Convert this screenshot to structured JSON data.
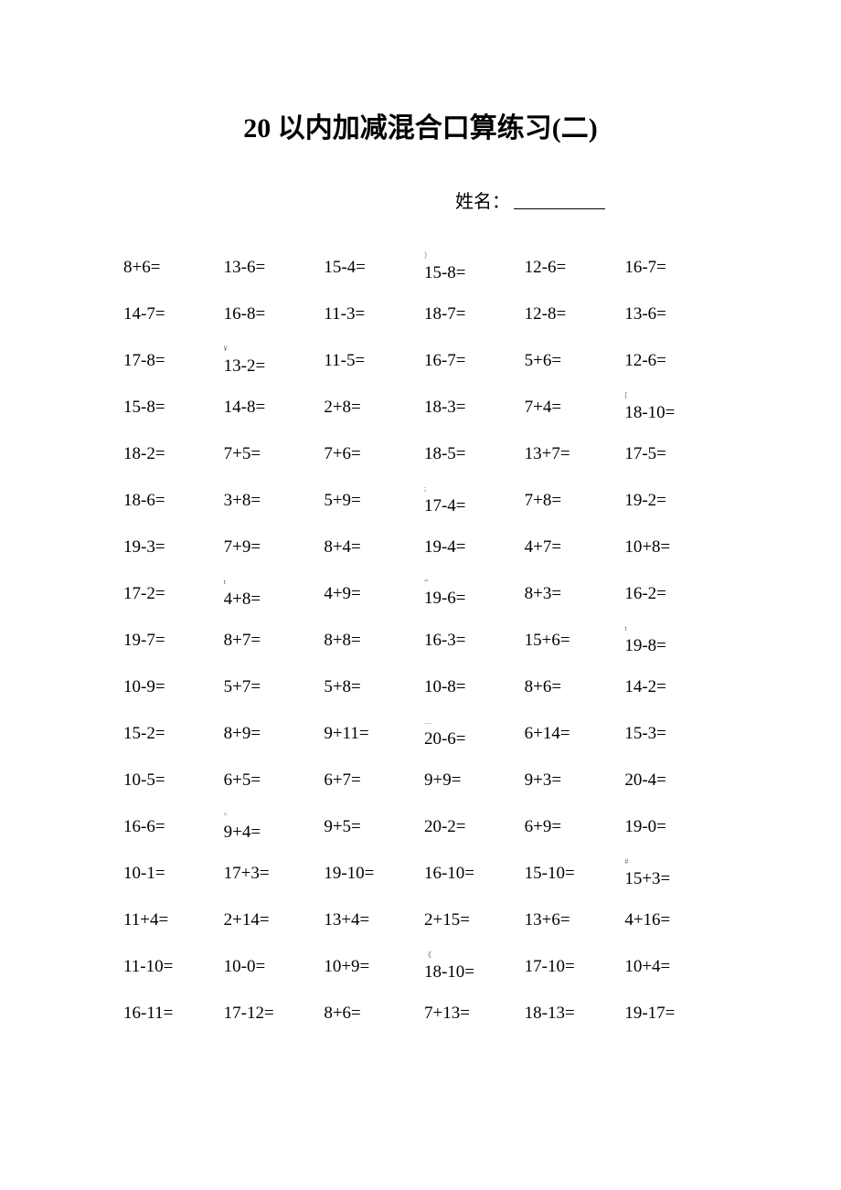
{
  "title": "20 以内加减混合口算练习(二)",
  "name_label": "姓名：",
  "columns": 6,
  "text_color": "#000000",
  "background_color": "#ffffff",
  "title_fontsize": 30,
  "body_fontsize": 19,
  "rows": [
    [
      {
        "text": "8+6="
      },
      {
        "text": "13-6="
      },
      {
        "text": "15-4="
      },
      {
        "pre": "）",
        "text": "15-8=",
        "wrapped": true
      },
      {
        "text": "12-6="
      },
      {
        "text": "16-7="
      }
    ],
    [
      {
        "text": "14-7="
      },
      {
        "text": "16-8="
      },
      {
        "text": "11-3="
      },
      {
        "text": "18-7="
      },
      {
        "text": "12-8="
      },
      {
        "text": "13-6="
      }
    ],
    [
      {
        "text": "17-8="
      },
      {
        "pre": "¥",
        "text": "13-2=",
        "wrapped": true
      },
      {
        "text": "11-5="
      },
      {
        "text": "16-7="
      },
      {
        "text": "5+6="
      },
      {
        "text": "12-6="
      }
    ],
    [
      {
        "text": "15-8="
      },
      {
        "text": "14-8="
      },
      {
        "text": "2+8="
      },
      {
        "text": "18-3="
      },
      {
        "text": "7+4="
      },
      {
        "pre": "[",
        "text": "18-10=",
        "wrapped": true
      }
    ],
    [
      {
        "text": "18-2="
      },
      {
        "text": "7+5="
      },
      {
        "text": "7+6="
      },
      {
        "text": "18-5="
      },
      {
        "text": "13+7="
      },
      {
        "text": "17-5="
      }
    ],
    [
      {
        "text": "18-6="
      },
      {
        "text": "3+8="
      },
      {
        "text": "5+9="
      },
      {
        "pre": ";",
        "text": "17-4=",
        "wrapped": true
      },
      {
        "text": "7+8="
      },
      {
        "text": "19-2="
      }
    ],
    [
      {
        "text": "19-3="
      },
      {
        "text": "7+9="
      },
      {
        "text": "8+4="
      },
      {
        "text": "19-4="
      },
      {
        "text": "4+7="
      },
      {
        "text": "10+8="
      }
    ],
    [
      {
        "text": "17-2="
      },
      {
        "pre": "t",
        "text": "4+8=",
        "wrapped": true
      },
      {
        "text": "4+9="
      },
      {
        "pre": "=",
        "text": "19-6="
      },
      {
        "text": "8+3="
      },
      {
        "text": "16-2="
      }
    ],
    [
      {
        "text": "19-7="
      },
      {
        "text": "8+7="
      },
      {
        "text": "8+8="
      },
      {
        "text": "16-3="
      },
      {
        "text": "15+6="
      },
      {
        "pre": "t",
        "text": "19-8=",
        "wrapped": true
      }
    ],
    [
      {
        "text": "10-9="
      },
      {
        "text": "5+7="
      },
      {
        "text": "5+8="
      },
      {
        "text": "10-8="
      },
      {
        "text": "8+6="
      },
      {
        "text": "14-2="
      }
    ],
    [
      {
        "text": "15-2="
      },
      {
        "text": "8+9="
      },
      {
        "text": "9+11="
      },
      {
        "pre": "…",
        "text": "20-6=",
        "wrapped": true
      },
      {
        "text": "6+14="
      },
      {
        "text": "15-3="
      }
    ],
    [
      {
        "text": "10-5="
      },
      {
        "text": "6+5="
      },
      {
        "text": "6+7="
      },
      {
        "text": "9+9="
      },
      {
        "text": "9+3="
      },
      {
        "text": "20-4="
      }
    ],
    [
      {
        "text": "16-6="
      },
      {
        "pre": "^",
        "text": "9+4=",
        "wrapped": true
      },
      {
        "text": "9+5="
      },
      {
        "text": "20-2="
      },
      {
        "text": "6+9="
      },
      {
        "text": "19-0="
      }
    ],
    [
      {
        "text": "10-1="
      },
      {
        "text": "17+3="
      },
      {
        "text": "19-10="
      },
      {
        "text": "16-10="
      },
      {
        "text": "15-10="
      },
      {
        "pre": "#",
        "text": "15+3=",
        "wrapped": true
      }
    ],
    [
      {
        "text": "11+4="
      },
      {
        "text": "2+14="
      },
      {
        "text": "13+4="
      },
      {
        "text": "2+15="
      },
      {
        "text": "13+6="
      },
      {
        "text": "4+16="
      }
    ],
    [
      {
        "text": "11-10="
      },
      {
        "text": "10-0="
      },
      {
        "text": "10+9="
      },
      {
        "pre": "《",
        "text": "18-10=",
        "wrapped": true
      },
      {
        "text": "17-10="
      },
      {
        "text": "10+4="
      }
    ],
    [
      {
        "text": "16-11="
      },
      {
        "text": "17-12="
      },
      {
        "text": "8+6="
      },
      {
        "text": "7+13="
      },
      {
        "text": "18-13="
      },
      {
        "text": "19-17="
      }
    ]
  ]
}
